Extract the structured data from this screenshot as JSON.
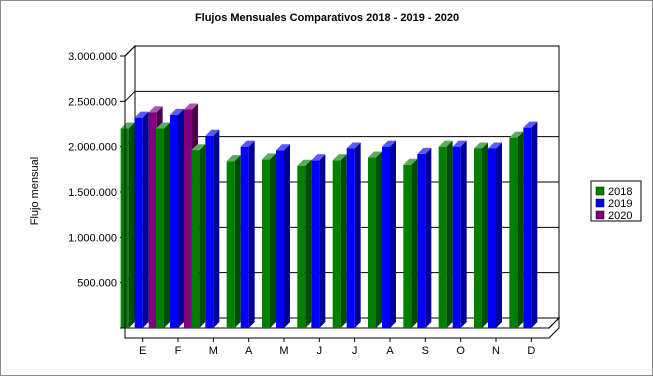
{
  "chart_data": {
    "type": "bar",
    "title": "Flujos Mensuales Comparativos 2018 - 2019 - 2020",
    "ylabel": "Flujo mensual",
    "xlabel": "",
    "categories": [
      "E",
      "F",
      "M",
      "A",
      "M",
      "J",
      "J",
      "A",
      "S",
      "O",
      "N",
      "D"
    ],
    "ylim": [
      0,
      3000000
    ],
    "yticks": [
      500000,
      1000000,
      1500000,
      2000000,
      2500000,
      3000000
    ],
    "ytick_labels": [
      "500.000",
      "1.000.000",
      "1.500.000",
      "2.000.000",
      "2.500.000",
      "3.000.000"
    ],
    "grid": true,
    "legend_position": "right",
    "series": [
      {
        "name": "2018",
        "color": "#008000",
        "values": [
          2200000,
          2200000,
          1960000,
          1840000,
          1860000,
          1790000,
          1850000,
          1880000,
          1800000,
          2000000,
          1980000,
          2100000
        ]
      },
      {
        "name": "2019",
        "color": "#0000ff",
        "values": [
          2320000,
          2350000,
          2120000,
          2000000,
          1960000,
          1850000,
          1980000,
          2000000,
          1920000,
          2000000,
          1980000,
          2210000
        ]
      },
      {
        "name": "2020",
        "color": "#800080",
        "values": [
          2380000,
          2410000,
          null,
          null,
          null,
          null,
          null,
          null,
          null,
          null,
          null,
          null
        ]
      }
    ]
  }
}
